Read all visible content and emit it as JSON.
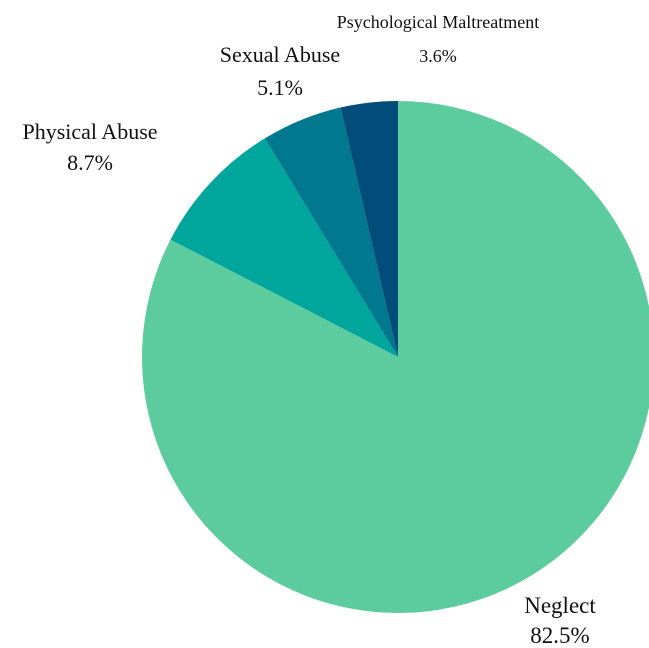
{
  "chart_data": {
    "type": "pie",
    "start_angle_deg": 0,
    "direction": "clockwise",
    "slices": [
      {
        "label": "Neglect",
        "value": 82.5,
        "value_label": "82.5%",
        "color": "#5ccc9f"
      },
      {
        "label": "Physical Abuse",
        "value": 8.7,
        "value_label": "8.7%",
        "color": "#00a69c"
      },
      {
        "label": "Sexual Abuse",
        "value": 5.1,
        "value_label": "5.1%",
        "color": "#00788f"
      },
      {
        "label": "Psychological Maltreatment",
        "value": 3.6,
        "value_label": "3.6%",
        "color": "#004d7a"
      }
    ]
  }
}
